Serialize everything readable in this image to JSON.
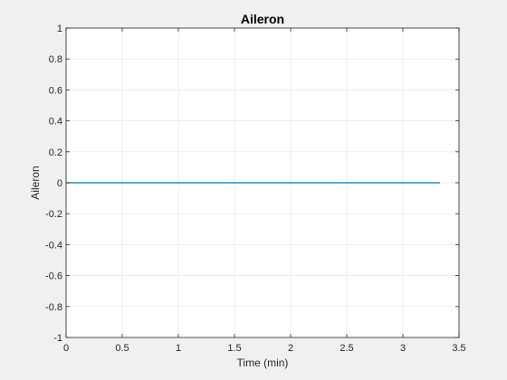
{
  "chart_data": {
    "type": "line",
    "title": "Aileron",
    "xlabel": "Time (min)",
    "ylabel": "Aileron",
    "xlim": [
      0,
      3.5
    ],
    "ylim": [
      -1,
      1
    ],
    "xticks": [
      0,
      0.5,
      1,
      1.5,
      2,
      2.5,
      3,
      3.5
    ],
    "xtick_labels": [
      "0",
      "0.5",
      "1",
      "1.5",
      "2",
      "2.5",
      "3",
      "3.5"
    ],
    "yticks": [
      -1,
      -0.8,
      -0.6,
      -0.4,
      -0.2,
      0,
      0.2,
      0.4,
      0.6,
      0.8,
      1
    ],
    "ytick_labels": [
      "-1",
      "-0.8",
      "-0.6",
      "-0.4",
      "-0.2",
      "0",
      "0.2",
      "0.4",
      "0.6",
      "0.8",
      "1"
    ],
    "grid": true,
    "series": [
      {
        "x": [
          0,
          3.33
        ],
        "y": [
          0,
          0
        ]
      }
    ]
  },
  "colors": {
    "figure_background": "#f0f0f0",
    "axes_background": "#ffffff",
    "axes_edge": "#262626",
    "grid": "#e6e6e6",
    "series_1": "#0072bd"
  }
}
